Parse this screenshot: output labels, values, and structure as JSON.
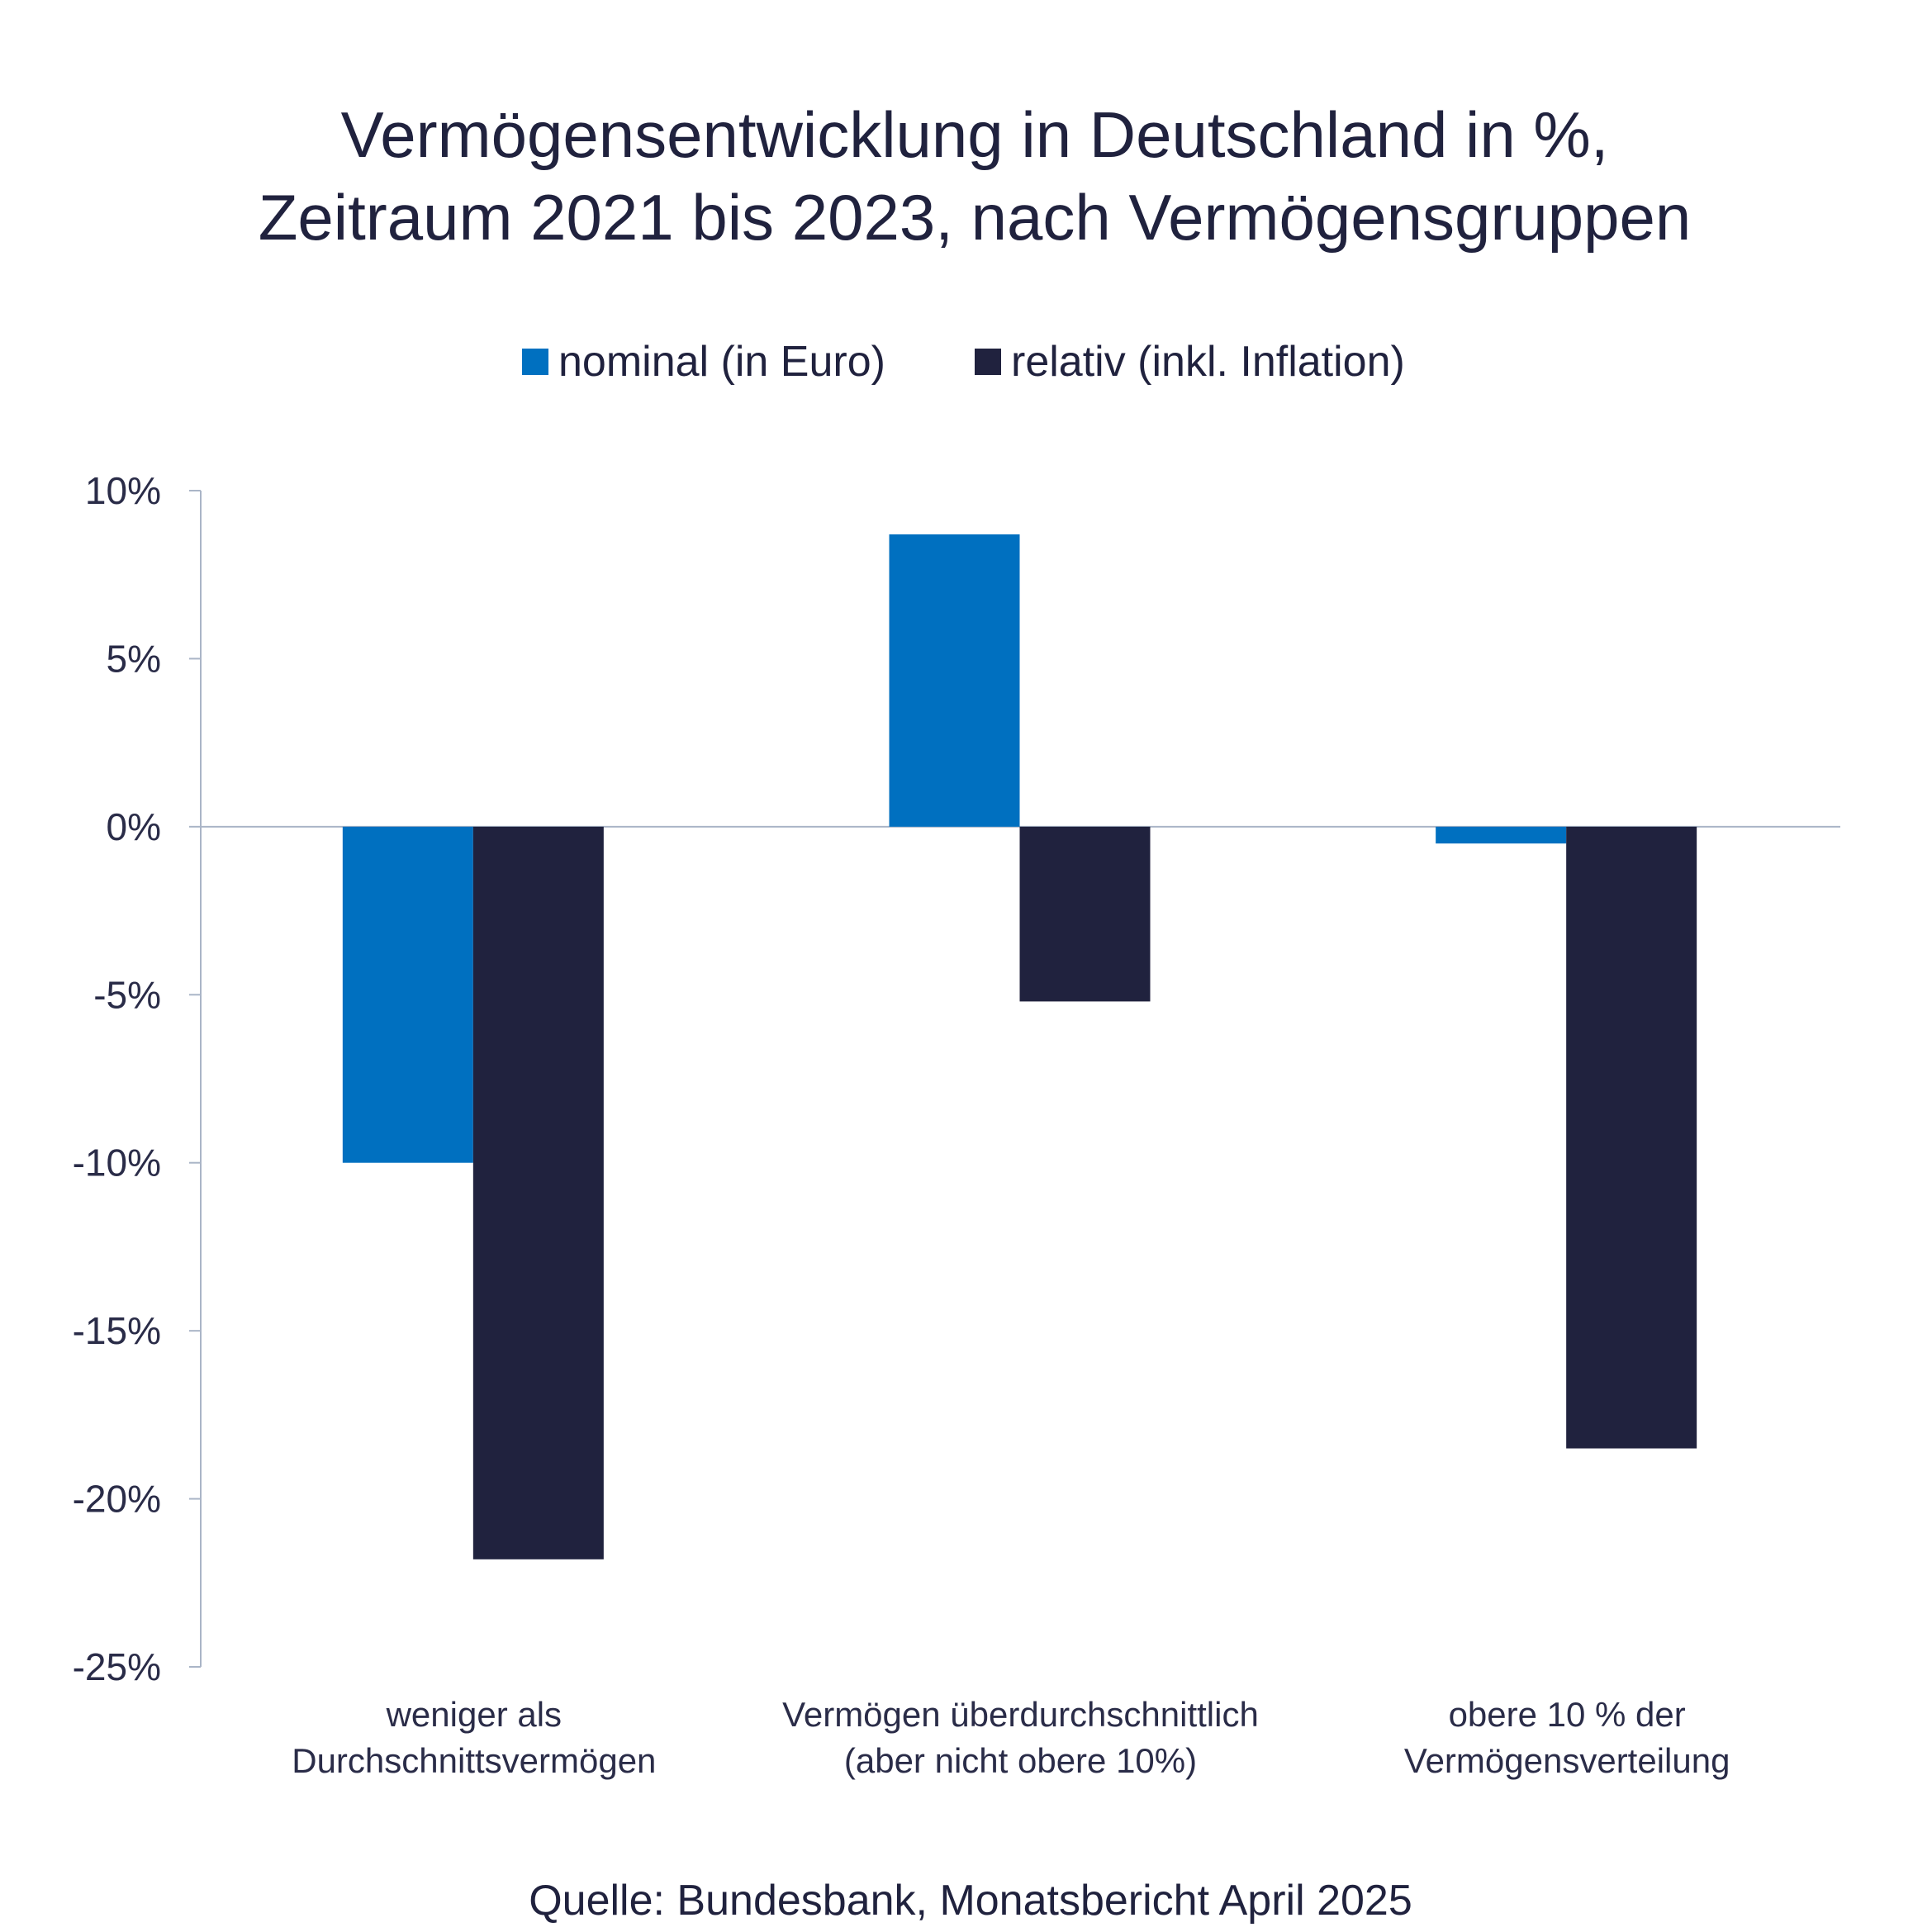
{
  "chart_data": {
    "type": "bar",
    "title": [
      "Vermögensentwicklung in Deutschland in %,",
      "Zeitraum 2021 bis 2023, nach Vermögensgruppen"
    ],
    "categories": [
      [
        "weniger als",
        "Durchschnittsvermögen"
      ],
      [
        "Vermögen überdurchschnittlich",
        "(aber nicht obere 10%)"
      ],
      [
        "obere 10 % der",
        "Vermögensverteilung"
      ]
    ],
    "series": [
      {
        "name": "nominal (in Euro)",
        "color": "#0070C0",
        "values": [
          -10.0,
          8.7,
          -0.5
        ]
      },
      {
        "name": "relativ (inkl. Inflation)",
        "color": "#20223E",
        "values": [
          -21.8,
          -5.2,
          -18.5
        ]
      }
    ],
    "yticks": [
      "10%",
      "5%",
      "0%",
      "-5%",
      "-10%",
      "-15%",
      "-20%",
      "-25%"
    ],
    "ylim": [
      -25,
      10
    ],
    "unit": "%",
    "grid": false,
    "legend_position": "top",
    "source": "Quelle: Bundesbank, Monatsbericht April 2025"
  }
}
